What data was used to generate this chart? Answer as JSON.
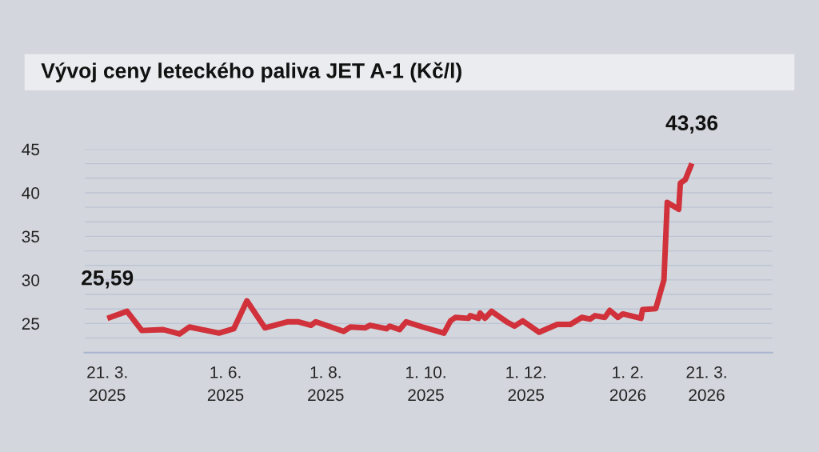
{
  "chart_data": {
    "type": "line",
    "title": "Vývoj ceny leteckého paliva JET A-1 (Kč/l)",
    "x": [
      "2025-03-21",
      "2025-04-02",
      "2025-04-11",
      "2025-04-24",
      "2025-05-04",
      "2025-05-10",
      "2025-05-28",
      "2025-06-06",
      "2025-06-14",
      "2025-06-25",
      "2025-07-09",
      "2025-07-15",
      "2025-07-23",
      "2025-07-26",
      "2025-08-12",
      "2025-08-16",
      "2025-08-25",
      "2025-08-28",
      "2025-09-07",
      "2025-09-09",
      "2025-09-15",
      "2025-09-19",
      "2025-09-29",
      "2025-10-12",
      "2025-10-16",
      "2025-10-19",
      "2025-10-27",
      "2025-10-28",
      "2025-11-02",
      "2025-11-03",
      "2025-11-06",
      "2025-11-10",
      "2025-11-20",
      "2025-11-24",
      "2025-11-29",
      "2025-12-09",
      "2025-12-20",
      "2025-12-28",
      "2026-01-04",
      "2026-01-09",
      "2026-01-12",
      "2026-01-18",
      "2026-01-21",
      "2026-01-26",
      "2026-01-29",
      "2026-02-09",
      "2026-02-10",
      "2026-02-18",
      "2026-02-23",
      "2026-02-25",
      "2026-03-04",
      "2026-03-05",
      "2026-03-08",
      "2026-03-12"
    ],
    "series": [
      {
        "color": "#d0313a",
        "values": [
          25.59,
          26.4,
          24.2,
          24.3,
          23.8,
          24.6,
          23.9,
          24.4,
          27.6,
          24.5,
          25.2,
          25.2,
          24.8,
          25.2,
          24.1,
          24.6,
          24.5,
          24.8,
          24.4,
          24.7,
          24.3,
          25.2,
          24.6,
          23.9,
          25.3,
          25.7,
          25.6,
          25.9,
          25.6,
          26.2,
          25.6,
          26.4,
          25.1,
          24.7,
          25.3,
          24.0,
          24.9,
          24.9,
          25.7,
          25.5,
          25.9,
          25.7,
          26.5,
          25.7,
          26.1,
          25.6,
          26.6,
          26.7,
          30.0,
          38.9,
          38.1,
          41.1,
          41.5,
          43.36
        ]
      }
    ],
    "xlim": [
      "2025-03-07",
      "2026-04-30"
    ],
    "xticks": [
      {
        "value": "2025-03-21",
        "label": "21. 3.\n2025"
      },
      {
        "value": "2025-06-01",
        "label": "1. 6.\n2025"
      },
      {
        "value": "2025-08-01",
        "label": "1. 8.\n2025"
      },
      {
        "value": "2025-10-01",
        "label": "1. 10.\n2025"
      },
      {
        "value": "2025-12-01",
        "label": "1. 12.\n2025"
      },
      {
        "value": "2026-02-01",
        "label": "1. 2.\n2026"
      },
      {
        "value": "2026-03-21",
        "label": "21. 3.\n2026"
      }
    ],
    "ylim": [
      21.667,
      45
    ],
    "yticks": [
      {
        "value": 23.333,
        "label": null
      },
      25,
      {
        "value": 26.667,
        "label": null
      },
      {
        "value": 28.333,
        "label": null
      },
      30,
      {
        "value": 31.667,
        "label": null
      },
      {
        "value": 33.333,
        "label": null
      },
      35,
      {
        "value": 36.667,
        "label": null
      },
      {
        "value": 38.333,
        "label": null
      },
      40,
      {
        "value": 41.667,
        "label": null
      },
      {
        "value": 43.333,
        "label": null
      },
      45
    ],
    "grid": "y",
    "marker": "none",
    "line_style": "solid",
    "annotations": [
      {
        "text": "25,59",
        "x": "2025-03-21",
        "y": 25.59
      },
      {
        "text": "43,36",
        "x": "2026-03-12",
        "y": 43.36
      }
    ]
  }
}
